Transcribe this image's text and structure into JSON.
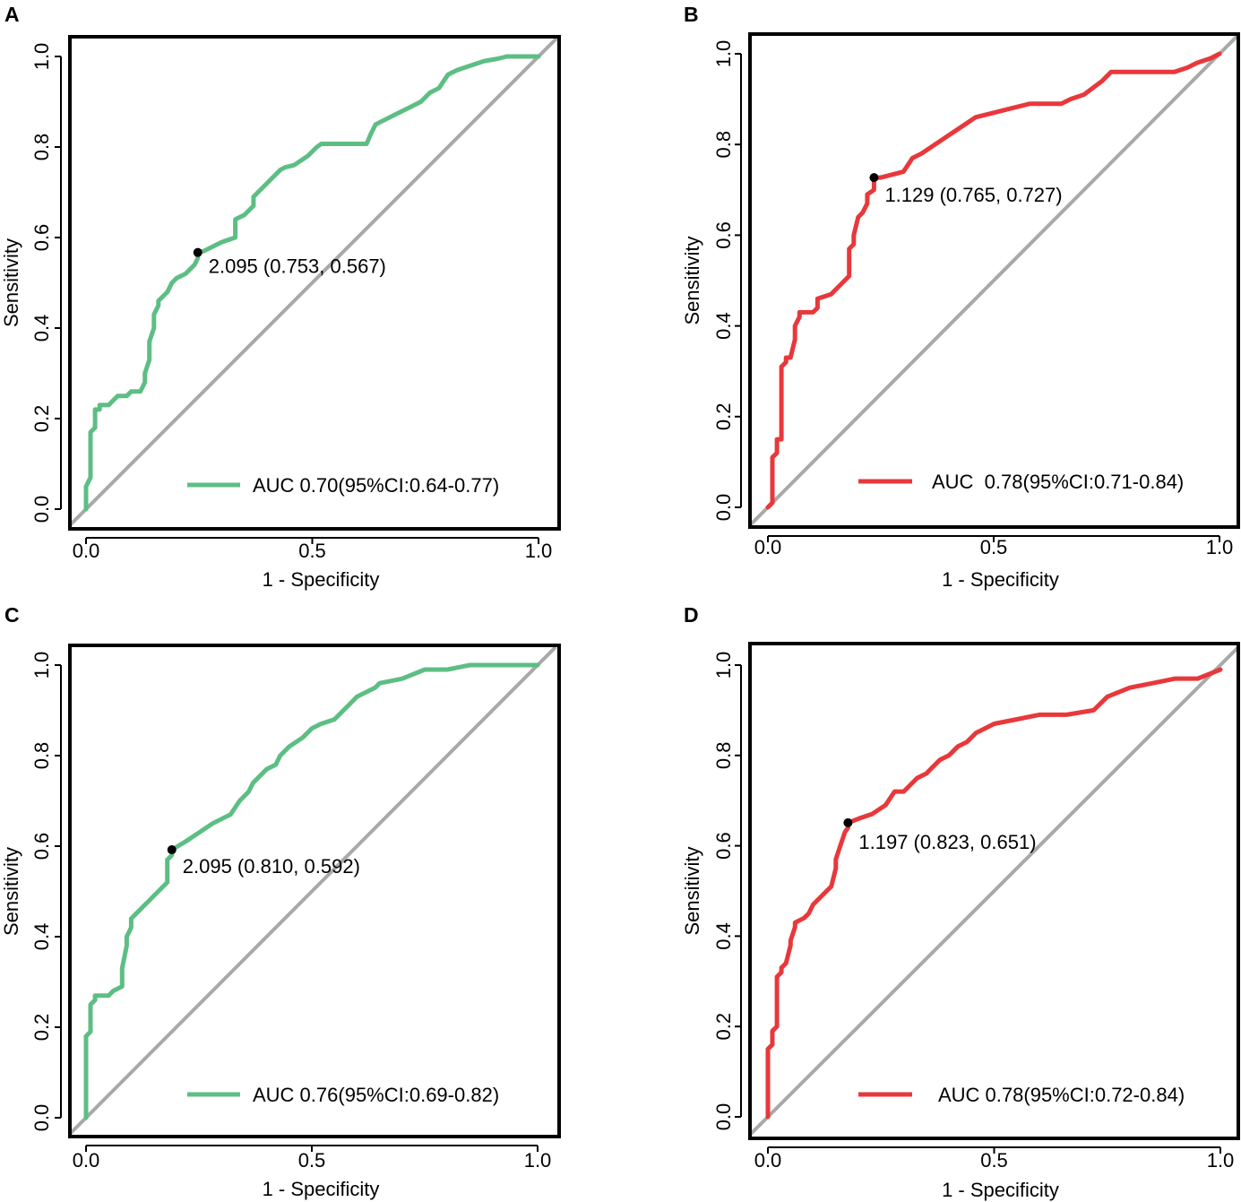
{
  "figure": {
    "type": "roc-panel-grid",
    "xlabel": "1 - Specificity",
    "ylabel": "Sensitivity"
  },
  "styles": {
    "green": "#5DBE84",
    "red": "#E8383B",
    "diagonal": "#A9A9A9",
    "frame": "#000000"
  },
  "chart_data": [
    {
      "type": "line",
      "panel": "A",
      "color": "green",
      "title": "",
      "xlabel": "1 - Specificity",
      "ylabel": "Sensitivity",
      "xlim": [
        0,
        1
      ],
      "ylim": [
        0,
        1
      ],
      "xticks": [
        "0.0",
        "0.5",
        "1.0"
      ],
      "yticks": [
        "0.0",
        "0.2",
        "0.4",
        "0.6",
        "0.8",
        "1.0"
      ],
      "legend": "AUC 0.70(95%CI:0.64-0.77)",
      "legend_position": "bottom-right",
      "cutoff_point": [
        0.247,
        0.567
      ],
      "annotation": "2.095 (0.753, 0.567)",
      "series": [
        {
          "name": "ROC",
          "x": [
            0,
            0,
            0.01,
            0.01,
            0.02,
            0.02,
            0.03,
            0.03,
            0.05,
            0.06,
            0.07,
            0.09,
            0.1,
            0.12,
            0.13,
            0.13,
            0.14,
            0.14,
            0.15,
            0.15,
            0.16,
            0.16,
            0.17,
            0.18,
            0.19,
            0.2,
            0.22,
            0.24,
            0.247,
            0.247,
            0.26,
            0.28,
            0.3,
            0.33,
            0.33,
            0.35,
            0.37,
            0.37,
            0.38,
            0.39,
            0.41,
            0.43,
            0.44,
            0.46,
            0.49,
            0.51,
            0.52,
            0.54,
            0.58,
            0.62,
            0.63,
            0.64,
            0.66,
            0.68,
            0.7,
            0.72,
            0.74,
            0.76,
            0.78,
            0.8,
            0.82,
            0.85,
            0.88,
            0.91,
            0.93,
            0.95,
            1.0
          ],
          "y": [
            0,
            0.05,
            0.07,
            0.17,
            0.18,
            0.22,
            0.22,
            0.23,
            0.23,
            0.24,
            0.25,
            0.25,
            0.26,
            0.26,
            0.28,
            0.3,
            0.33,
            0.37,
            0.4,
            0.43,
            0.45,
            0.46,
            0.47,
            0.48,
            0.5,
            0.51,
            0.52,
            0.54,
            0.554,
            0.567,
            0.57,
            0.58,
            0.59,
            0.6,
            0.64,
            0.65,
            0.67,
            0.69,
            0.7,
            0.71,
            0.73,
            0.75,
            0.755,
            0.76,
            0.78,
            0.8,
            0.807,
            0.807,
            0.807,
            0.807,
            0.83,
            0.85,
            0.86,
            0.87,
            0.88,
            0.89,
            0.9,
            0.92,
            0.93,
            0.96,
            0.97,
            0.98,
            0.99,
            0.995,
            1.0,
            1.0,
            1.0
          ]
        }
      ]
    },
    {
      "type": "line",
      "panel": "B",
      "color": "red",
      "title": "",
      "xlabel": "1 - Specificity",
      "ylabel": "Sensitivity",
      "xlim": [
        0,
        1
      ],
      "ylim": [
        0,
        1
      ],
      "xticks": [
        "0.0",
        "0.5",
        "1.0"
      ],
      "yticks": [
        "0.0",
        "0.2",
        "0.4",
        "0.6",
        "0.8",
        "1.0"
      ],
      "legend": "AUC  0.78(95%CI:0.71-0.84)",
      "legend_position": "bottom-right",
      "cutoff_point": [
        0.235,
        0.727
      ],
      "annotation": "1.129 (0.765, 0.727)",
      "series": [
        {
          "name": "ROC",
          "x": [
            0,
            0.01,
            0.01,
            0.02,
            0.02,
            0.03,
            0.03,
            0.04,
            0.04,
            0.05,
            0.06,
            0.06,
            0.07,
            0.07,
            0.1,
            0.11,
            0.11,
            0.14,
            0.15,
            0.16,
            0.17,
            0.18,
            0.18,
            0.19,
            0.19,
            0.2,
            0.21,
            0.22,
            0.22,
            0.235,
            0.235,
            0.25,
            0.3,
            0.32,
            0.34,
            0.37,
            0.4,
            0.43,
            0.46,
            0.5,
            0.54,
            0.58,
            0.65,
            0.67,
            0.7,
            0.74,
            0.76,
            0.82,
            0.9,
            0.93,
            0.95,
            0.98,
            1.0
          ],
          "y": [
            0,
            0.01,
            0.11,
            0.12,
            0.15,
            0.15,
            0.31,
            0.32,
            0.33,
            0.33,
            0.37,
            0.4,
            0.42,
            0.43,
            0.43,
            0.44,
            0.46,
            0.47,
            0.48,
            0.49,
            0.5,
            0.51,
            0.57,
            0.58,
            0.6,
            0.64,
            0.65,
            0.67,
            0.69,
            0.7,
            0.727,
            0.727,
            0.74,
            0.77,
            0.78,
            0.8,
            0.82,
            0.84,
            0.86,
            0.87,
            0.88,
            0.89,
            0.89,
            0.9,
            0.91,
            0.94,
            0.96,
            0.96,
            0.96,
            0.97,
            0.98,
            0.99,
            1.0
          ]
        }
      ]
    },
    {
      "type": "line",
      "panel": "C",
      "color": "green",
      "title": "",
      "xlabel": "1 - Specificity",
      "ylabel": "Sensitivity",
      "xlim": [
        0,
        1
      ],
      "ylim": [
        0,
        1
      ],
      "xticks": [
        "0.0",
        "0.5",
        "1.0"
      ],
      "yticks": [
        "0.0",
        "0.2",
        "0.4",
        "0.6",
        "0.8",
        "1.0"
      ],
      "legend": "AUC 0.76(95%CI:0.69-0.82)",
      "legend_position": "bottom-right",
      "cutoff_point": [
        0.19,
        0.592
      ],
      "annotation": "2.095 (0.810, 0.592)",
      "series": [
        {
          "name": "ROC",
          "x": [
            0,
            0,
            0.01,
            0.01,
            0.02,
            0.02,
            0.05,
            0.06,
            0.08,
            0.08,
            0.09,
            0.09,
            0.1,
            0.1,
            0.11,
            0.12,
            0.13,
            0.14,
            0.15,
            0.16,
            0.18,
            0.18,
            0.19,
            0.19,
            0.22,
            0.25,
            0.28,
            0.32,
            0.34,
            0.36,
            0.37,
            0.39,
            0.4,
            0.42,
            0.43,
            0.45,
            0.48,
            0.5,
            0.52,
            0.55,
            0.58,
            0.6,
            0.62,
            0.64,
            0.65,
            0.7,
            0.75,
            0.8,
            0.85,
            0.9,
            1.0
          ],
          "y": [
            0,
            0.18,
            0.19,
            0.25,
            0.26,
            0.27,
            0.27,
            0.28,
            0.29,
            0.33,
            0.38,
            0.4,
            0.42,
            0.44,
            0.45,
            0.46,
            0.47,
            0.48,
            0.49,
            0.5,
            0.52,
            0.57,
            0.58,
            0.592,
            0.61,
            0.63,
            0.65,
            0.67,
            0.7,
            0.72,
            0.74,
            0.76,
            0.77,
            0.78,
            0.8,
            0.82,
            0.84,
            0.86,
            0.87,
            0.88,
            0.91,
            0.93,
            0.94,
            0.95,
            0.96,
            0.97,
            0.99,
            0.99,
            1.0,
            1.0,
            1.0
          ]
        }
      ]
    },
    {
      "type": "line",
      "panel": "D",
      "color": "red",
      "title": "",
      "xlabel": "1 - Specificity",
      "ylabel": "Sensitivity",
      "xlim": [
        0,
        1
      ],
      "ylim": [
        0,
        1
      ],
      "xticks": [
        "0.0",
        "0.5",
        "1.0"
      ],
      "yticks": [
        "0.0",
        "0.2",
        "0.4",
        "0.6",
        "0.8",
        "1.0"
      ],
      "legend": "AUC 0.78(95%CI:0.72-0.84)",
      "legend_position": "bottom-right",
      "cutoff_point": [
        0.177,
        0.651
      ],
      "annotation": "1.197 (0.823, 0.651)",
      "series": [
        {
          "name": "ROC",
          "x": [
            0,
            0,
            0.01,
            0.01,
            0.02,
            0.02,
            0.03,
            0.03,
            0.04,
            0.05,
            0.05,
            0.06,
            0.06,
            0.08,
            0.09,
            0.1,
            0.11,
            0.12,
            0.13,
            0.14,
            0.15,
            0.15,
            0.16,
            0.17,
            0.177,
            0.177,
            0.2,
            0.23,
            0.26,
            0.28,
            0.3,
            0.33,
            0.35,
            0.36,
            0.38,
            0.4,
            0.42,
            0.44,
            0.46,
            0.48,
            0.5,
            0.55,
            0.6,
            0.66,
            0.72,
            0.75,
            0.8,
            0.85,
            0.9,
            0.95,
            1.0
          ],
          "y": [
            0,
            0.15,
            0.16,
            0.19,
            0.2,
            0.31,
            0.32,
            0.33,
            0.34,
            0.38,
            0.39,
            0.42,
            0.43,
            0.44,
            0.45,
            0.47,
            0.48,
            0.49,
            0.5,
            0.51,
            0.55,
            0.57,
            0.6,
            0.63,
            0.64,
            0.651,
            0.66,
            0.67,
            0.69,
            0.72,
            0.72,
            0.75,
            0.76,
            0.77,
            0.79,
            0.8,
            0.82,
            0.83,
            0.85,
            0.86,
            0.87,
            0.88,
            0.89,
            0.89,
            0.9,
            0.93,
            0.95,
            0.96,
            0.97,
            0.97,
            0.99
          ]
        }
      ]
    }
  ]
}
